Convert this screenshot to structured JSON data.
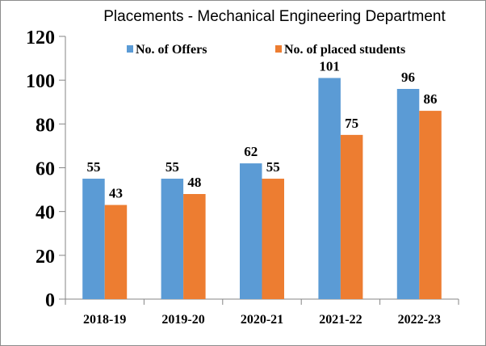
{
  "chart_data": {
    "type": "bar",
    "title": "Placements - Mechanical Engineering Department",
    "xlabel": "",
    "ylabel": "",
    "categories": [
      "2018-19",
      "2019-20",
      "2020-21",
      "2021-22",
      "2022-23"
    ],
    "series": [
      {
        "name": "No. of Offers",
        "color": "#5b9bd5",
        "values": [
          55,
          55,
          62,
          101,
          96
        ]
      },
      {
        "name": "No. of placed students",
        "color": "#ed7d31",
        "values": [
          43,
          48,
          55,
          75,
          86
        ]
      }
    ],
    "ylim": [
      0,
      120
    ],
    "yticks": [
      0,
      20,
      40,
      60,
      80,
      100,
      120
    ],
    "grid": false,
    "legend_position": "top"
  }
}
